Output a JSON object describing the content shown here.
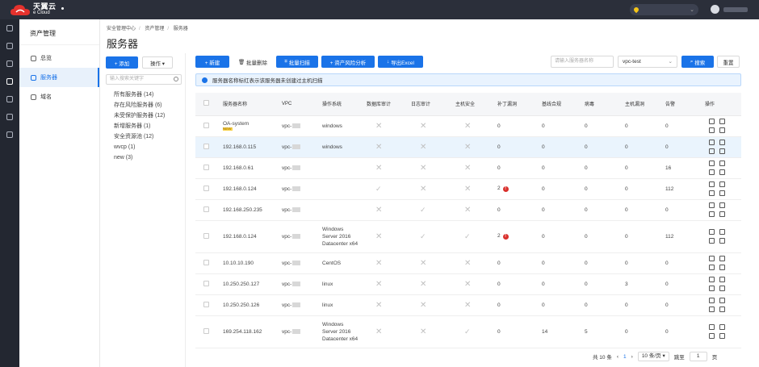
{
  "brand": {
    "cn": "天翼云",
    "en": "e Cloud"
  },
  "submenu": {
    "title": "资产管理",
    "items": [
      {
        "label": "总览",
        "active": false
      },
      {
        "label": "服务器",
        "active": true
      },
      {
        "label": "域名",
        "active": false
      }
    ]
  },
  "breadcrumb": [
    "安全管理中心",
    "资产管理",
    "服务器"
  ],
  "page_title": "服务器",
  "left_panel": {
    "add_label": "+ 添加",
    "ops_label": "操作 ▾",
    "search_placeholder": "输入搜索关键字",
    "groups": [
      "所有服务器 (14)",
      "存在风险服务器 (6)",
      "未受保护服务器 (12)",
      "新增服务器 (1)",
      "安全资源池 (12)",
      "wvcp (1)",
      "new (3)"
    ]
  },
  "toolbar": {
    "new_label": "+ 新建",
    "batch_delete_label": "批量删除",
    "batch_scan_label": "批量扫描",
    "risk_analysis_label": "+ 资产风险分析",
    "export_label": "导出Excel"
  },
  "search": {
    "placeholder": "请输入服务器名称",
    "vpc_value": "vpc-test",
    "search_label": "搜索",
    "reset_label": "重置"
  },
  "notice": "服务器名称标红表示该服务器未创建过主机扫描",
  "table": {
    "columns": [
      "服务器名称",
      "VPC",
      "操作系统",
      "数据库审计",
      "日志审计",
      "主机安全",
      "补丁漏洞",
      "基线合规",
      "病毒",
      "主机漏洞",
      "告警",
      "操作"
    ],
    "rows": [
      {
        "name": "OA-system",
        "tag": "NEW",
        "vpc": "vpc-",
        "os": "windows",
        "db": "x",
        "log": "x",
        "host": "x",
        "patch": "0",
        "patch_warn": false,
        "baseline": "0",
        "virus": "0",
        "hostvuln": "0",
        "alert": "0",
        "tall": false,
        "highlight": false
      },
      {
        "name": "192.168.0.115",
        "tag": "",
        "vpc": "vpc-",
        "os": "windows",
        "db": "x",
        "log": "x",
        "host": "x",
        "patch": "0",
        "patch_warn": false,
        "baseline": "0",
        "virus": "0",
        "hostvuln": "0",
        "alert": "0",
        "tall": false,
        "highlight": true
      },
      {
        "name": "192.168.0.61",
        "tag": "",
        "vpc": "vpc-",
        "os": "",
        "db": "x",
        "log": "x",
        "host": "x",
        "patch": "0",
        "patch_warn": false,
        "baseline": "0",
        "virus": "0",
        "hostvuln": "0",
        "alert": "16",
        "tall": false,
        "highlight": false
      },
      {
        "name": "192.168.0.124",
        "tag": "",
        "vpc": "vpc-",
        "os": "",
        "db": "check",
        "log": "x",
        "host": "x",
        "patch": "2",
        "patch_warn": true,
        "baseline": "0",
        "virus": "0",
        "hostvuln": "0",
        "alert": "112",
        "tall": false,
        "highlight": false
      },
      {
        "name": "192.168.250.235",
        "tag": "",
        "vpc": "vpc-",
        "os": "",
        "db": "x",
        "log": "check",
        "host": "x",
        "patch": "0",
        "patch_warn": false,
        "baseline": "0",
        "virus": "0",
        "hostvuln": "0",
        "alert": "0",
        "tall": false,
        "highlight": false
      },
      {
        "name": "192.168.0.124",
        "tag": "",
        "vpc": "vpc-",
        "os": "Windows Server 2016 Datacenter x64",
        "db": "x",
        "log": "check",
        "host": "check",
        "patch": "2",
        "patch_warn": true,
        "baseline": "0",
        "virus": "0",
        "hostvuln": "0",
        "alert": "112",
        "tall": true,
        "highlight": false
      },
      {
        "name": "10.10.10.190",
        "tag": "",
        "vpc": "vpc-",
        "os": "CentOS",
        "db": "x",
        "log": "x",
        "host": "x",
        "patch": "0",
        "patch_warn": false,
        "baseline": "0",
        "virus": "0",
        "hostvuln": "0",
        "alert": "0",
        "tall": false,
        "highlight": false
      },
      {
        "name": "10.250.250.127",
        "tag": "",
        "vpc": "vpc-",
        "os": "linux",
        "db": "x",
        "log": "x",
        "host": "x",
        "patch": "0",
        "patch_warn": false,
        "baseline": "0",
        "virus": "0",
        "hostvuln": "3",
        "alert": "0",
        "tall": false,
        "highlight": false
      },
      {
        "name": "10.250.250.126",
        "tag": "",
        "vpc": "vpc-",
        "os": "linux",
        "db": "x",
        "log": "x",
        "host": "x",
        "patch": "0",
        "patch_warn": false,
        "baseline": "0",
        "virus": "0",
        "hostvuln": "0",
        "alert": "0",
        "tall": false,
        "highlight": false
      },
      {
        "name": "169.254.118.162",
        "tag": "",
        "vpc": "vpc-",
        "os": "Windows Server 2016 Datacenter x64",
        "db": "x",
        "log": "x",
        "host": "check",
        "patch": "0",
        "patch_warn": false,
        "baseline": "14",
        "virus": "5",
        "hostvuln": "0",
        "alert": "0",
        "tall": true,
        "highlight": false
      }
    ]
  },
  "pager": {
    "total": "共 10 条",
    "prev": "‹",
    "page": "1",
    "next": "›",
    "size": "10 条/页 ▾",
    "goto": "跳至",
    "goto_value": "1",
    "page_suffix": "页"
  }
}
